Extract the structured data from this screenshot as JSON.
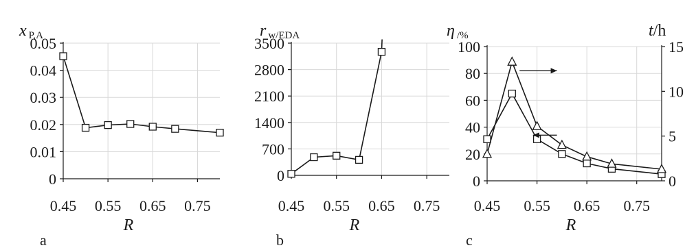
{
  "chart_data": [
    {
      "type": "line",
      "panel": "a",
      "ylabel": {
        "main": "x",
        "sub": "P,A"
      },
      "xlabel": "R",
      "xlim": [
        0.45,
        0.8
      ],
      "ylim": [
        0,
        0.05
      ],
      "xticks": [
        0.45,
        0.55,
        0.65,
        0.75
      ],
      "xtick_labels": [
        "0.45",
        "0.55",
        "0.65",
        "0.75"
      ],
      "yticks": [
        0,
        0.01,
        0.02,
        0.03,
        0.04,
        0.05
      ],
      "ytick_labels": [
        "0",
        "0.01",
        "0.02",
        "0.03",
        "0.04",
        "0.05"
      ],
      "grid": true,
      "series": [
        {
          "marker": "square",
          "axis": "left",
          "x": [
            0.45,
            0.5,
            0.55,
            0.6,
            0.65,
            0.7,
            0.8
          ],
          "y": [
            0.0452,
            0.0188,
            0.0198,
            0.0202,
            0.0192,
            0.0184,
            0.017
          ]
        }
      ]
    },
    {
      "type": "line",
      "panel": "b",
      "ylabel": {
        "main": "r",
        "sub": "w/EDA"
      },
      "xlabel": "R",
      "xlim": [
        0.45,
        0.8
      ],
      "ylim": [
        0,
        3500
      ],
      "xticks": [
        0.45,
        0.55,
        0.65,
        0.75
      ],
      "xtick_labels": [
        "0.45",
        "0.55",
        "0.65",
        "0.75"
      ],
      "yticks": [
        0,
        700,
        1400,
        2100,
        2800,
        3500
      ],
      "ytick_labels": [
        "0",
        "700",
        "1400",
        "2100",
        "2800",
        "3500"
      ],
      "grid": true,
      "series": [
        {
          "marker": "square",
          "axis": "left",
          "x": [
            0.45,
            0.5,
            0.55,
            0.6,
            0.65
          ],
          "y": [
            40,
            480,
            520,
            410,
            3270
          ]
        }
      ],
      "line_extension": {
        "x": 0.651,
        "y": 3600
      }
    },
    {
      "type": "line",
      "panel": "c",
      "ylabel": {
        "main": "η",
        "sub": "/%"
      },
      "y2label": {
        "main": "t",
        "sub": "/h"
      },
      "xlabel": "R",
      "xlim": [
        0.45,
        0.8
      ],
      "ylim": [
        0,
        100
      ],
      "y2lim": [
        0,
        15
      ],
      "xticks": [
        0.45,
        0.55,
        0.65,
        0.75
      ],
      "xtick_labels": [
        "0.45",
        "0.55",
        "0.65",
        "0.75"
      ],
      "yticks": [
        0,
        20,
        40,
        60,
        80,
        100
      ],
      "ytick_labels": [
        "0",
        "20",
        "40",
        "60",
        "80",
        "100"
      ],
      "y2ticks": [
        0,
        5,
        10,
        15
      ],
      "y2tick_labels": [
        "0",
        "5",
        "10",
        "15"
      ],
      "grid": true,
      "series": [
        {
          "marker": "square",
          "axis": "left",
          "x": [
            0.45,
            0.5,
            0.55,
            0.6,
            0.65,
            0.7,
            0.8
          ],
          "y": [
            31,
            65,
            31,
            20,
            13,
            9,
            5
          ]
        },
        {
          "marker": "triangle",
          "axis": "right",
          "x": [
            0.45,
            0.5,
            0.55,
            0.6,
            0.65,
            0.7,
            0.8
          ],
          "y": [
            3.0,
            13.3,
            6.1,
            4.0,
            2.7,
            1.9,
            1.3
          ]
        }
      ],
      "arrows": [
        {
          "direction": "right",
          "x_from": 0.515,
          "x_to": 0.59,
          "y": 82
        },
        {
          "direction": "left",
          "x_from": 0.59,
          "x_to": 0.542,
          "y": 34
        }
      ]
    }
  ],
  "panel_labels": [
    "a",
    "b",
    "c"
  ]
}
